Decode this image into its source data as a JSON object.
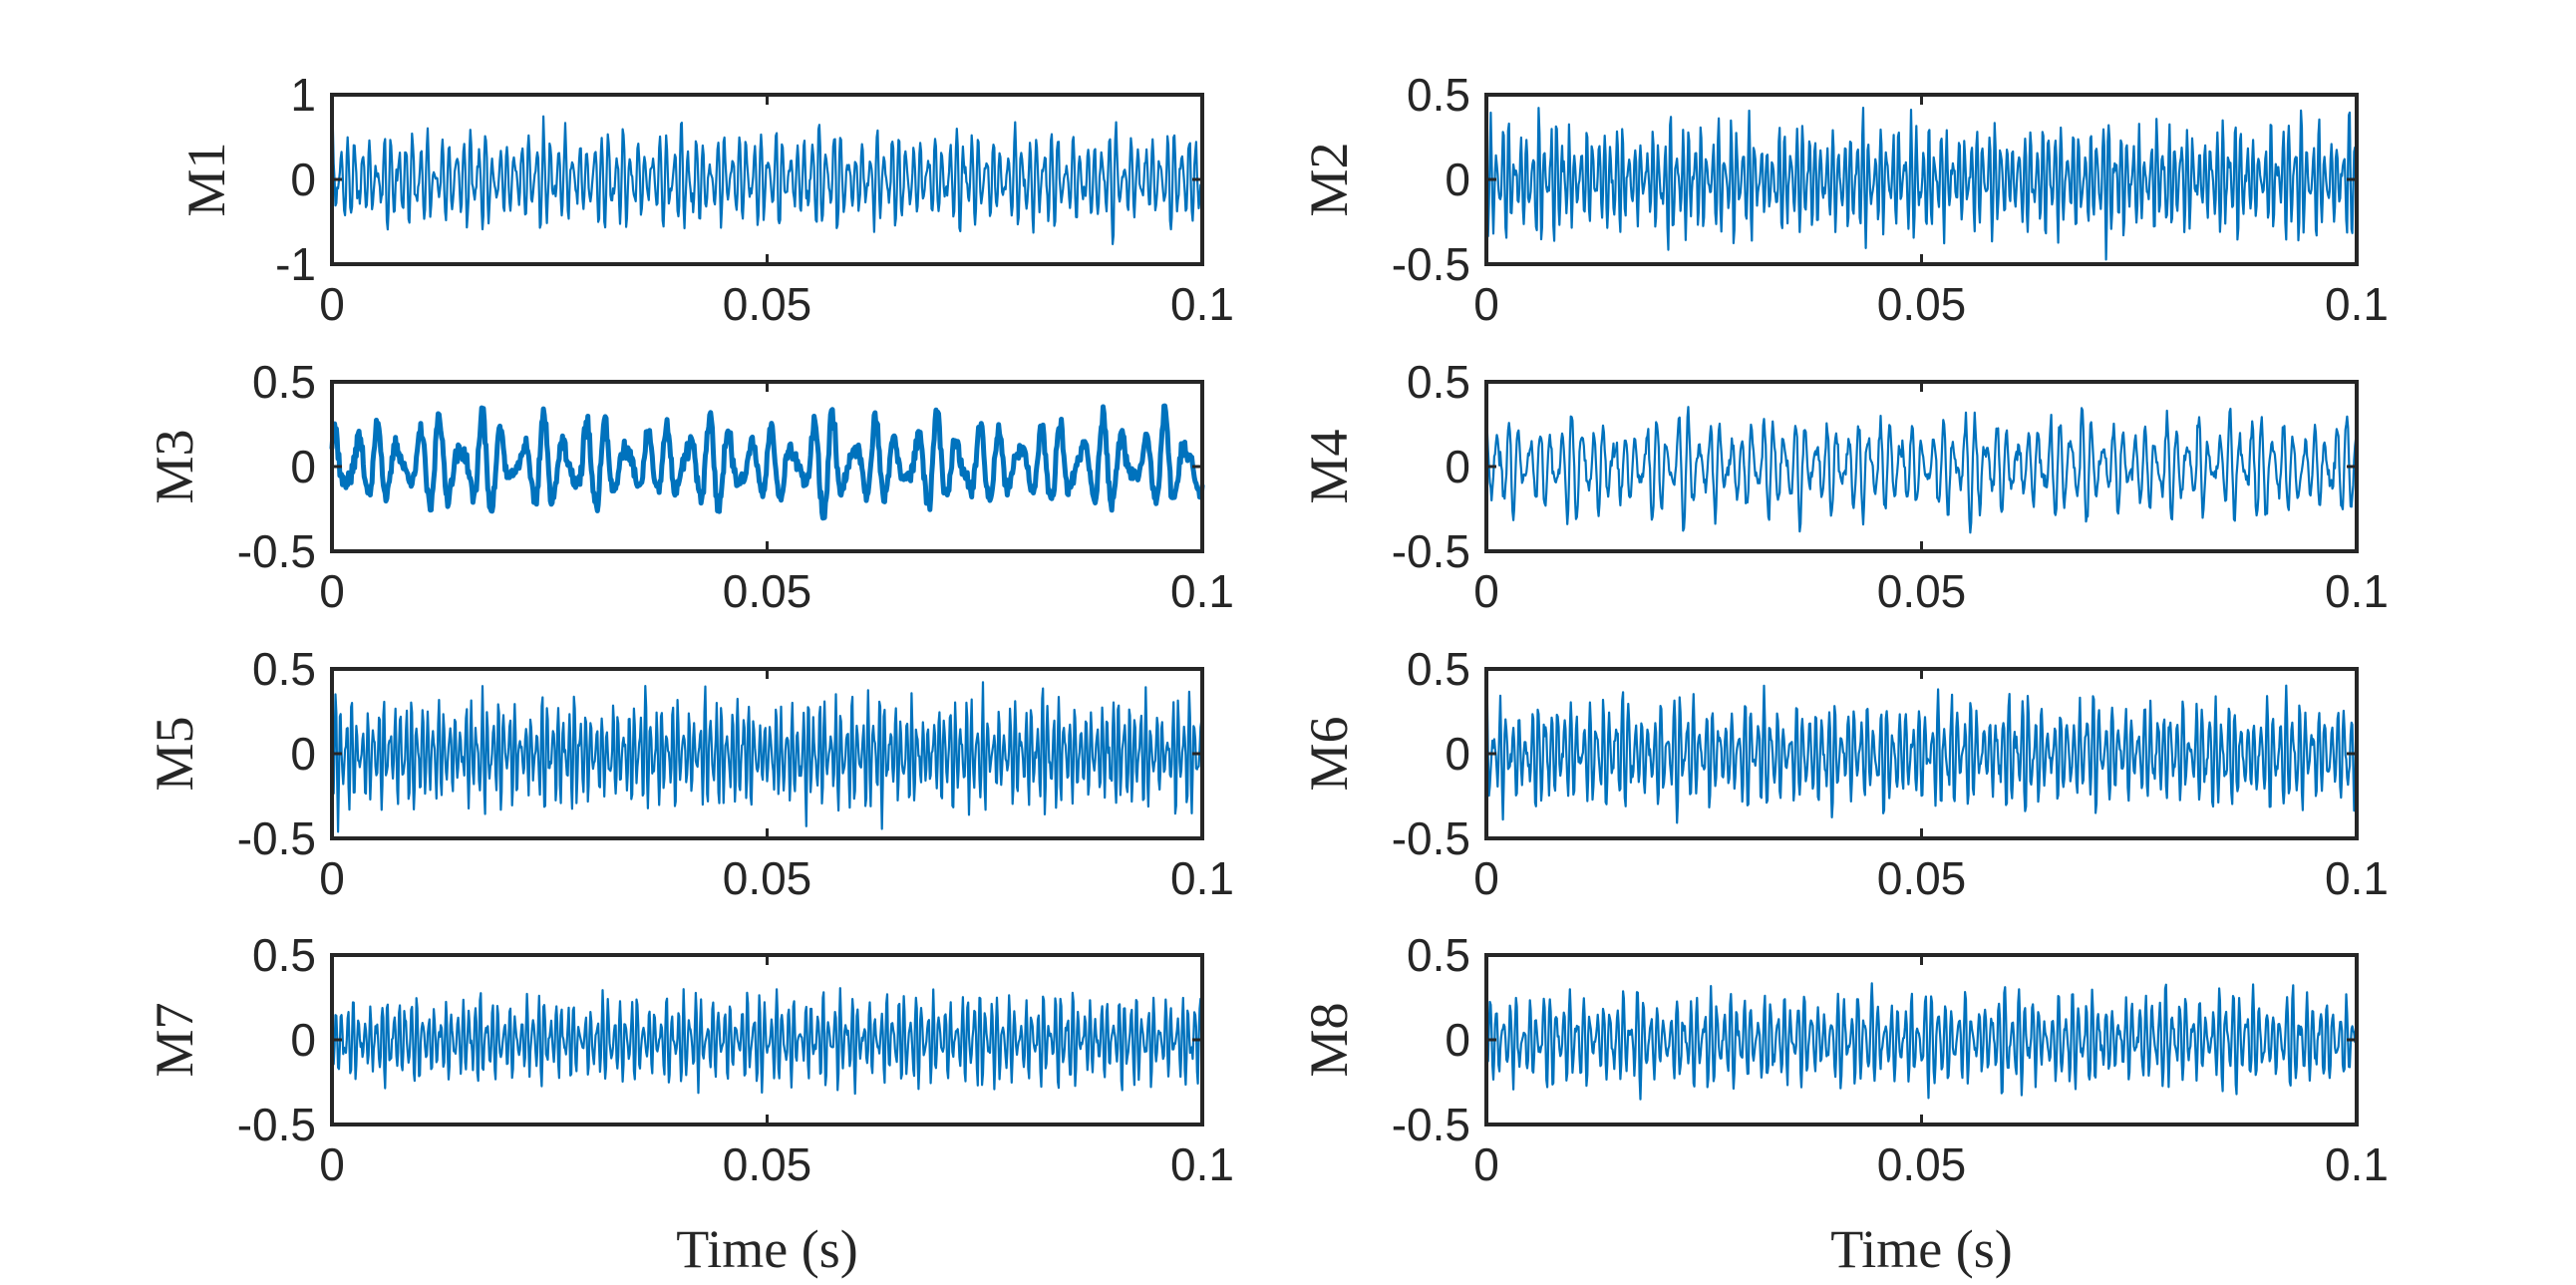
{
  "figure": {
    "type": "line",
    "panel_count": 8,
    "grid": false,
    "legend": false
  },
  "chart_data": [
    {
      "type": "line",
      "ylabel": "M1",
      "xlabel": "",
      "xlim": [
        0,
        0.1
      ],
      "ylim": [
        -1,
        1
      ],
      "xticks": [
        "0",
        "0.05",
        "0.1"
      ],
      "yticks": [
        "-1",
        "0",
        "1"
      ],
      "color": "#0072BD",
      "signal": {
        "samples": 1001,
        "dominant_hz": 1200,
        "mod_hz": [
          62,
          145,
          310
        ],
        "peak": 0.72,
        "seed": 11
      }
    },
    {
      "type": "line",
      "ylabel": "M2",
      "xlabel": "",
      "xlim": [
        0,
        0.1
      ],
      "ylim": [
        -0.5,
        0.5
      ],
      "xticks": [
        "0",
        "0.05",
        "0.1"
      ],
      "yticks": [
        "-0.5",
        "0",
        "0.5"
      ],
      "color": "#0072BD",
      "signal": {
        "samples": 1001,
        "dominant_hz": 1450,
        "mod_hz": [
          70,
          160,
          290
        ],
        "peak": 0.42,
        "seed": 23
      }
    },
    {
      "type": "line",
      "ylabel": "M3",
      "xlabel": "",
      "xlim": [
        0,
        0.1
      ],
      "ylim": [
        -0.5,
        0.5
      ],
      "xticks": [
        "0",
        "0.05",
        "0.1"
      ],
      "yticks": [
        "-0.5",
        "0",
        "0.5"
      ],
      "color": "#0072BD",
      "signal": {
        "samples": 1001,
        "dominant_hz": 420,
        "mod_hz": [
          35,
          90,
          210
        ],
        "peak": 0.36,
        "seed": 37
      }
    },
    {
      "type": "line",
      "ylabel": "M4",
      "xlabel": "",
      "xlim": [
        0,
        0.1
      ],
      "ylim": [
        -0.5,
        0.5
      ],
      "xticks": [
        "0",
        "0.05",
        "0.1"
      ],
      "yticks": [
        "-0.5",
        "0",
        "0.5"
      ],
      "color": "#0072BD",
      "signal": {
        "samples": 1001,
        "dominant_hz": 820,
        "mod_hz": [
          45,
          120,
          260
        ],
        "peak": 0.38,
        "seed": 41
      }
    },
    {
      "type": "line",
      "ylabel": "M5",
      "xlabel": "",
      "xlim": [
        0,
        0.1
      ],
      "ylim": [
        -0.5,
        0.5
      ],
      "xticks": [
        "0",
        "0.05",
        "0.1"
      ],
      "yticks": [
        "-0.5",
        "0",
        "0.5"
      ],
      "color": "#0072BD",
      "signal": {
        "samples": 1001,
        "dominant_hz": 1600,
        "mod_hz": [
          55,
          130,
          270
        ],
        "peak": 0.42,
        "seed": 53
      }
    },
    {
      "type": "line",
      "ylabel": "M6",
      "xlabel": "",
      "xlim": [
        0,
        0.1
      ],
      "ylim": [
        -0.5,
        0.5
      ],
      "xticks": [
        "0",
        "0.05",
        "0.1"
      ],
      "yticks": [
        "-0.5",
        "0",
        "0.5"
      ],
      "color": "#0072BD",
      "signal": {
        "samples": 1001,
        "dominant_hz": 1350,
        "mod_hz": [
          65,
          150,
          300
        ],
        "peak": 0.4,
        "seed": 67
      }
    },
    {
      "type": "line",
      "ylabel": "M7",
      "xlabel": "Time (s)",
      "xlim": [
        0,
        0.1
      ],
      "ylim": [
        -0.5,
        0.5
      ],
      "xticks": [
        "0",
        "0.05",
        "0.1"
      ],
      "yticks": [
        "-0.5",
        "0",
        "0.5"
      ],
      "color": "#0072BD",
      "signal": {
        "samples": 1001,
        "dominant_hz": 1500,
        "mod_hz": [
          60,
          140,
          280
        ],
        "peak": 0.32,
        "seed": 79
      }
    },
    {
      "type": "line",
      "ylabel": "M8",
      "xlabel": "Time (s)",
      "xlim": [
        0,
        0.1
      ],
      "ylim": [
        -0.5,
        0.5
      ],
      "xticks": [
        "0",
        "0.05",
        "0.1"
      ],
      "yticks": [
        "-0.5",
        "0",
        "0.5"
      ],
      "color": "#0072BD",
      "signal": {
        "samples": 1001,
        "dominant_hz": 1300,
        "mod_hz": [
          58,
          135,
          320
        ],
        "peak": 0.35,
        "seed": 83
      }
    }
  ]
}
